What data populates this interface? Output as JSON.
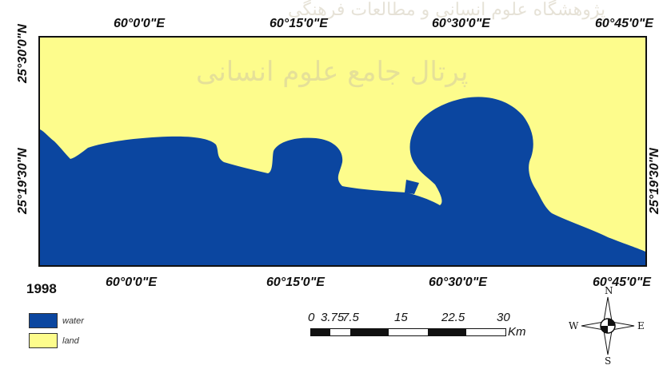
{
  "map": {
    "colors": {
      "water": "#0b46a0",
      "land": "#fdfc8c",
      "frame": "#111111"
    },
    "watermark_top": "پژوهشگاه علوم انسانی و مطالعات فرهنگی",
    "watermark": "پرتال جامع علوم انسانی"
  },
  "grid": {
    "top_labels": [
      "60°0'0\"E",
      "60°15'0\"E",
      "60°30'0\"E",
      "60°45'0\"E"
    ],
    "bottom_labels": [
      "60°0'0\"E",
      "60°15'0\"E",
      "60°30'0\"E",
      "60°45'0\"E"
    ],
    "left_labels": [
      "25°30'0\"N",
      "25°19'30\"N"
    ],
    "right_labels": [
      "25°19'30\"N"
    ]
  },
  "year": "1998",
  "legend": {
    "items": [
      {
        "label": "water",
        "color": "#0b46a0"
      },
      {
        "label": "land",
        "color": "#fdfc8c"
      }
    ]
  },
  "scale": {
    "ticks": [
      "0",
      "3.75",
      "7.5",
      "15",
      "22.5",
      "30"
    ],
    "unit": "Km"
  },
  "compass": {
    "n": "N",
    "s": "S",
    "e": "E",
    "w": "W"
  }
}
